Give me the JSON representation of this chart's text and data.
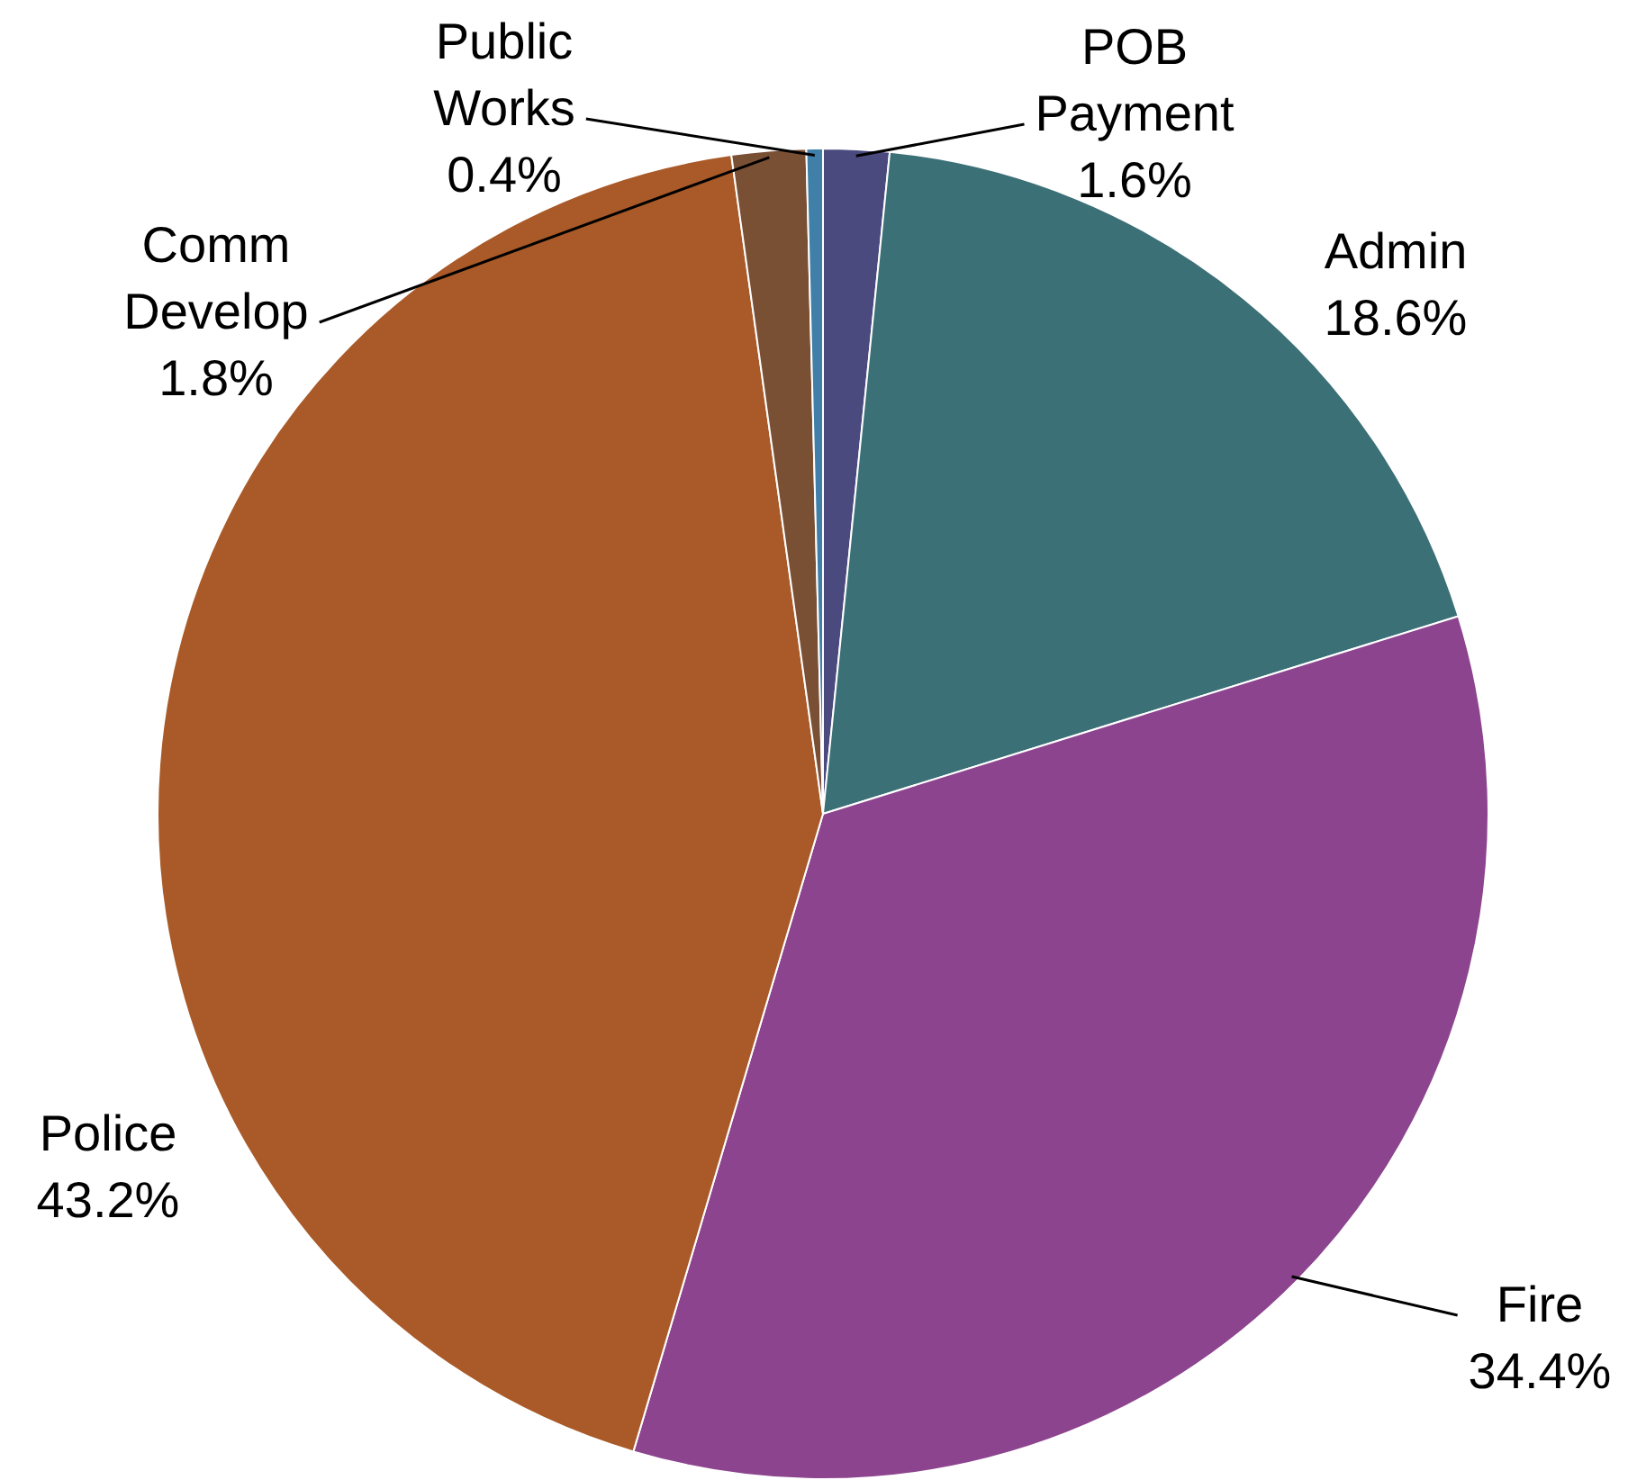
{
  "chart_data": {
    "type": "pie",
    "categories": [
      "POB Payment",
      "Admin",
      "Fire",
      "Police",
      "Comm Develop",
      "Public Works"
    ],
    "values": [
      1.6,
      18.6,
      34.4,
      43.2,
      1.8,
      0.4
    ],
    "colors": [
      "#4a4a7e",
      "#3b7077",
      "#8c448e",
      "#a95a28",
      "#7a5035",
      "#3f7fa8"
    ],
    "value_labels": [
      "1.6%",
      "18.6%",
      "34.4%",
      "43.2%",
      "1.8%",
      "0.4%"
    ],
    "legend": false
  }
}
